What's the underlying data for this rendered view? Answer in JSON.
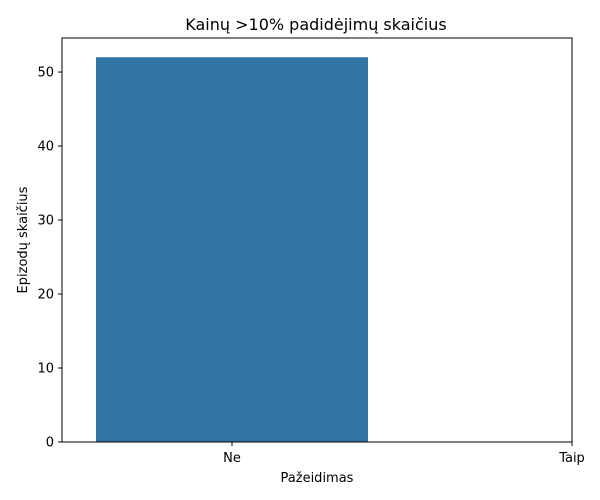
{
  "chart_data": {
    "type": "bar",
    "title": "Kainų >10% padidėjimų skaičius",
    "xlabel": "Pažeidimas",
    "ylabel": "Epizodų skaičius",
    "categories": [
      "Ne",
      "Taip"
    ],
    "values": [
      52,
      0
    ],
    "ylim": [
      0,
      54.6
    ],
    "yticks": [
      0,
      10,
      20,
      30,
      40,
      50
    ],
    "grid": false,
    "colors": {
      "bar": "#3274a1",
      "axis": "#000000"
    }
  }
}
